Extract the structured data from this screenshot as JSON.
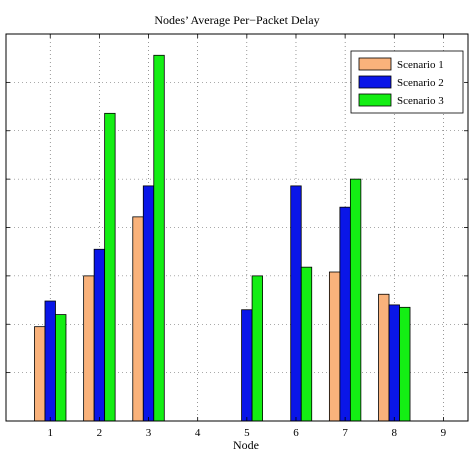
{
  "chart_data": {
    "type": "bar",
    "title": "Nodes’ Average Per−Packet Delay",
    "xlabel": "Node",
    "ylabel": "",
    "categories": [
      "1",
      "2",
      "3",
      "4",
      "5",
      "6",
      "7",
      "8",
      "9"
    ],
    "series": [
      {
        "name": "Scenario 1",
        "color": "#F9B27B",
        "values": [
          1.95,
          3.0,
          4.22,
          0,
          0,
          0,
          3.08,
          2.62,
          0
        ]
      },
      {
        "name": "Scenario 2",
        "color": "#0A16E8",
        "values": [
          2.48,
          3.55,
          4.86,
          0,
          2.3,
          4.86,
          4.42,
          2.4,
          0
        ]
      },
      {
        "name": "Scenario 3",
        "color": "#14EE14",
        "values": [
          2.2,
          6.36,
          7.56,
          0,
          3.0,
          3.18,
          5.0,
          2.35,
          0
        ]
      }
    ],
    "ylim": [
      0,
      8
    ],
    "yticks": [
      1,
      2,
      3,
      4,
      5,
      6,
      7,
      8
    ],
    "grid": true,
    "legend_position": "top-right"
  }
}
